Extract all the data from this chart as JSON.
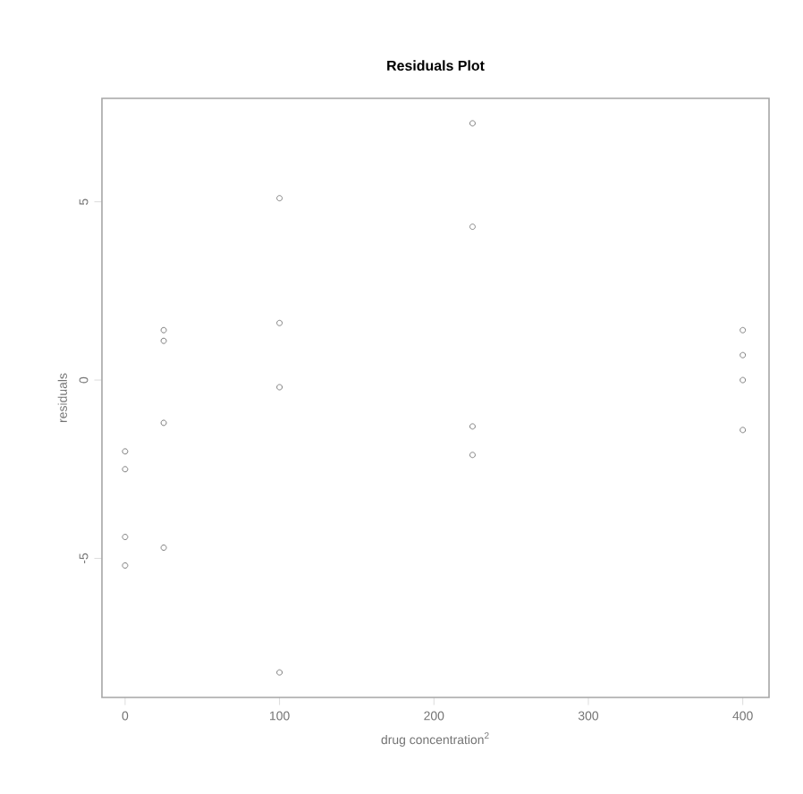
{
  "chart_data": {
    "type": "scatter",
    "title": "Residuals Plot",
    "xlabel": "drug concentration$^{2}$",
    "ylabel": "residuals",
    "marker": "circle",
    "color": "#808080",
    "x": [
      0,
      0,
      0,
      0,
      25,
      25,
      25,
      25,
      100,
      100,
      100,
      100,
      225,
      225,
      225,
      225,
      400,
      400,
      400,
      400
    ],
    "values": [
      -2.0,
      -2.5,
      -4.4,
      -5.2,
      1.4,
      1.1,
      -1.2,
      -4.7,
      5.1,
      1.6,
      -0.2,
      -8.2,
      7.2,
      4.3,
      -1.3,
      -2.1,
      1.4,
      0.7,
      0.0,
      -1.4
    ],
    "xlim": [
      -15,
      417
    ],
    "ylim": [
      -8.9,
      7.9
    ],
    "xticks": [
      0,
      100,
      200,
      300,
      400
    ],
    "yticks": [
      -5,
      0,
      5
    ],
    "grid": false
  }
}
